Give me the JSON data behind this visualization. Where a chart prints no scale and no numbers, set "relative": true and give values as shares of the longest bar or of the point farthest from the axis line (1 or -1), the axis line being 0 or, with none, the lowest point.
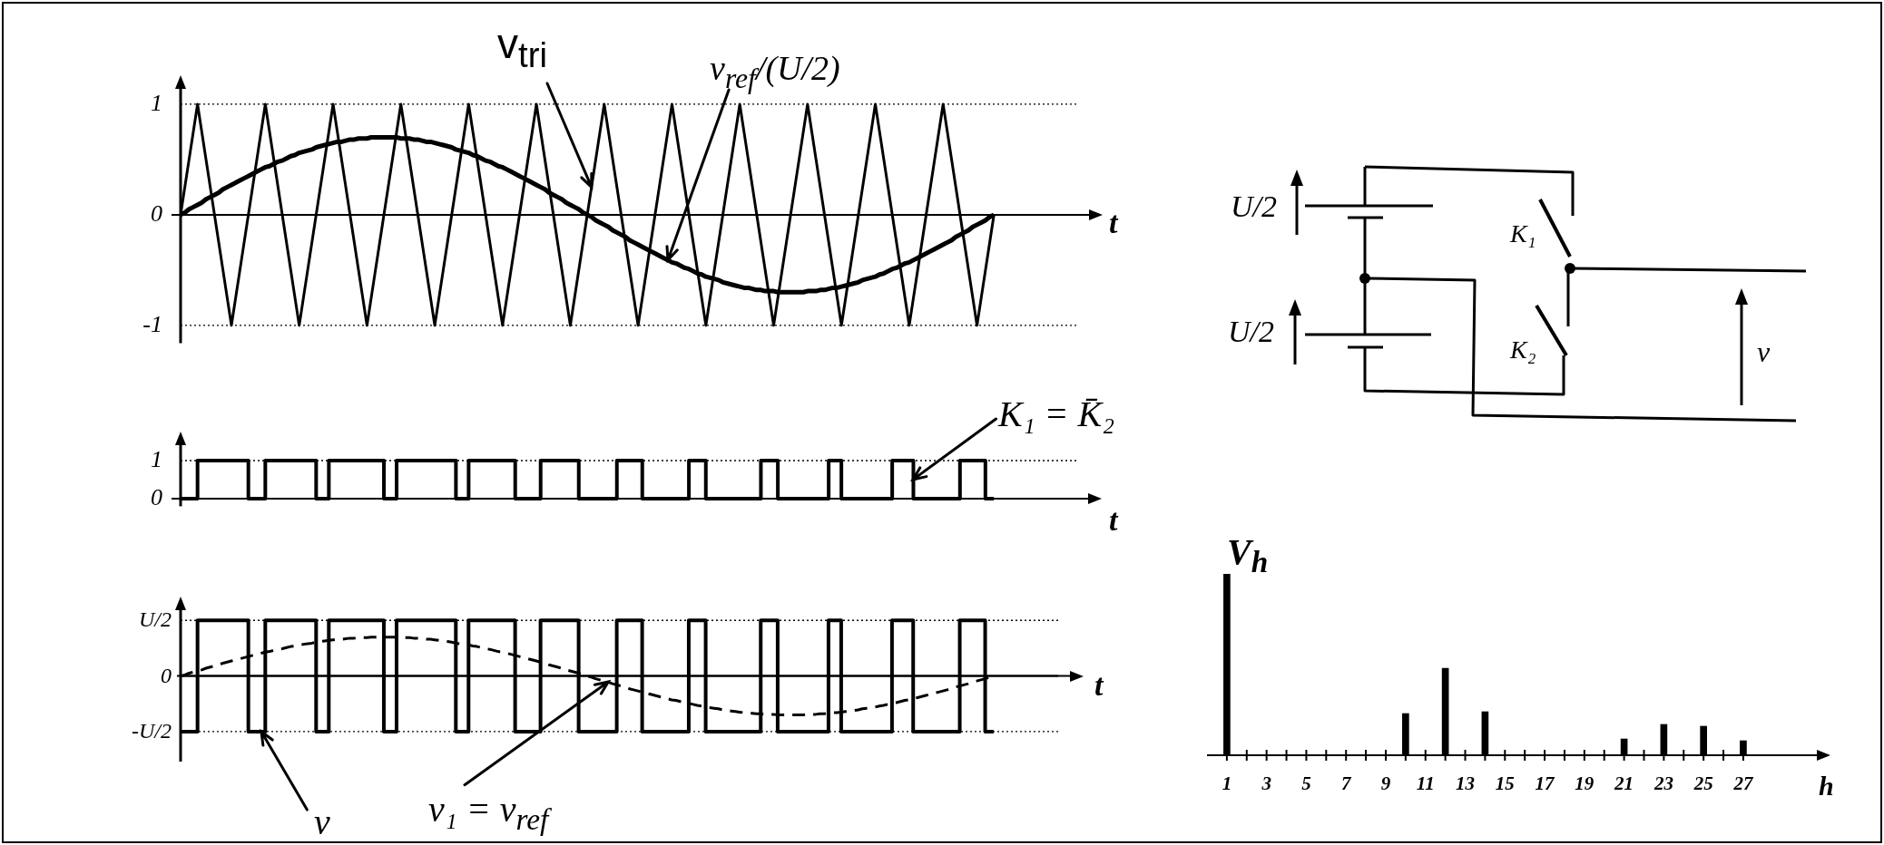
{
  "chart_data": [
    {
      "type": "line",
      "xlabel": "t",
      "ylim": [
        -1.16,
        1.15
      ],
      "yticks": [
        -1,
        0,
        1
      ],
      "grid": "y",
      "annotations": [
        "v$_{tri}$",
        "v$_{ref}$/(U/2)"
      ],
      "categories": [
        null,
        null,
        null,
        null,
        null,
        null,
        null,
        null,
        null,
        null,
        null,
        null,
        null,
        null,
        null,
        null,
        null,
        null,
        null,
        null,
        null,
        null,
        null,
        null,
        null,
        null,
        null,
        null,
        null,
        null,
        null,
        null,
        null,
        null,
        null,
        null,
        null,
        null,
        null,
        null,
        null,
        null,
        null,
        null,
        null,
        null,
        null,
        null,
        null,
        null,
        null,
        null,
        null,
        null,
        null,
        null,
        null,
        null,
        null,
        null,
        null,
        null,
        null,
        null,
        null,
        null,
        null,
        null,
        null,
        null,
        null,
        null,
        null,
        null,
        null,
        null,
        null,
        null,
        null,
        null,
        null,
        null,
        null,
        null,
        null,
        null,
        null,
        null,
        null,
        null,
        null,
        null,
        null,
        null,
        null,
        null,
        null,
        null,
        null,
        null,
        null,
        null,
        null,
        null,
        null,
        null,
        null,
        null,
        null,
        null,
        null,
        null,
        null,
        null,
        null,
        null,
        null,
        null,
        null,
        null,
        null,
        null,
        null,
        null,
        null,
        null,
        null,
        null,
        null,
        null,
        null,
        null,
        null,
        null,
        null,
        null,
        null,
        null,
        null,
        null,
        null,
        null,
        null,
        null,
        null,
        null,
        null,
        null,
        null,
        null,
        null,
        null,
        null,
        null,
        null,
        null,
        null,
        null,
        null,
        null,
        null,
        null,
        null,
        null,
        null,
        null,
        null,
        null,
        null,
        null,
        null,
        null,
        null,
        null,
        null,
        null,
        null,
        null,
        null,
        null,
        null,
        null,
        null,
        null,
        null,
        null,
        null,
        null,
        null,
        null,
        null,
        null,
        null
      ],
      "series": [
        {
          "color": "#000000",
          "values": [
            0,
            0.25,
            0.5,
            0.75,
            1,
            0.75,
            0.5,
            0.25,
            0,
            -0.25,
            -0.5,
            -0.75,
            -1,
            -0.75,
            -0.5,
            -0.25,
            0,
            0.25,
            0.5,
            0.75,
            1,
            0.75,
            0.5,
            0.25,
            0,
            -0.25,
            -0.5,
            -0.75,
            -1,
            -0.75,
            -0.5,
            -0.25,
            0,
            0.25,
            0.5,
            0.75,
            1,
            0.75,
            0.5,
            0.25,
            0,
            -0.25,
            -0.5,
            -0.75,
            -1,
            -0.75,
            -0.5,
            -0.25,
            0,
            0.25,
            0.5,
            0.75,
            1,
            0.75,
            0.5,
            0.25,
            0,
            -0.25,
            -0.5,
            -0.75,
            -1,
            -0.75,
            -0.5,
            -0.25,
            0,
            0.25,
            0.5,
            0.75,
            1,
            0.75,
            0.5,
            0.25,
            0,
            -0.25,
            -0.5,
            -0.75,
            -1,
            -0.75,
            -0.5,
            -0.25,
            0,
            0.25,
            0.5,
            0.75,
            1,
            0.75,
            0.5,
            0.25,
            0,
            -0.25,
            -0.5,
            -0.75,
            -1,
            -0.75,
            -0.5,
            -0.25,
            0,
            0.25,
            0.5,
            0.75,
            1,
            0.75,
            0.5,
            0.25,
            0,
            -0.25,
            -0.5,
            -0.75,
            -1,
            -0.75,
            -0.5,
            -0.25,
            0,
            0.25,
            0.5,
            0.75,
            1,
            0.75,
            0.5,
            0.25,
            0,
            -0.25,
            -0.5,
            -0.75,
            -1,
            -0.75,
            -0.5,
            -0.25,
            0,
            0.25,
            0.5,
            0.75,
            1,
            0.75,
            0.5,
            0.25,
            0,
            -0.25,
            -0.5,
            -0.75,
            -1,
            -0.75,
            -0.5,
            -0.25,
            0,
            0.25,
            0.5,
            0.75,
            1,
            0.75,
            0.5,
            0.25,
            0,
            -0.25,
            -0.5,
            -0.75,
            -1,
            -0.75,
            -0.5,
            -0.25,
            0,
            0.25,
            0.5,
            0.75,
            1,
            0.75,
            0.5,
            0.25,
            0,
            -0.25,
            -0.5,
            -0.75,
            -1,
            -0.75,
            -0.5,
            -0.25,
            0,
            0.25,
            0.5,
            0.75,
            1,
            0.75,
            0.5,
            0.25,
            0,
            -0.25,
            -0.5,
            -0.75,
            -1,
            -0.75,
            -0.5,
            -0.25,
            0
          ]
        },
        {
          "color": "#000000",
          "values": [
            0,
            0.02,
            0.05,
            0.07,
            0.09,
            0.11,
            0.14,
            0.16,
            0.18,
            0.2,
            0.23,
            0.25,
            0.27,
            0.29,
            0.31,
            0.33,
            0.35,
            0.37,
            0.39,
            0.41,
            0.43,
            0.44,
            0.46,
            0.48,
            0.49,
            0.51,
            0.53,
            0.54,
            0.56,
            0.57,
            0.58,
            0.59,
            0.61,
            0.62,
            0.63,
            0.64,
            0.65,
            0.66,
            0.66,
            0.67,
            0.68,
            0.68,
            0.69,
            0.69,
            0.69,
            0.7,
            0.7,
            0.7,
            0.7,
            0.7,
            0.7,
            0.7,
            0.69,
            0.69,
            0.69,
            0.68,
            0.68,
            0.67,
            0.66,
            0.66,
            0.65,
            0.64,
            0.63,
            0.62,
            0.61,
            0.59,
            0.58,
            0.57,
            0.56,
            0.54,
            0.53,
            0.51,
            0.49,
            0.48,
            0.46,
            0.44,
            0.43,
            0.41,
            0.39,
            0.37,
            0.35,
            0.33,
            0.31,
            0.29,
            0.27,
            0.25,
            0.23,
            0.2,
            0.18,
            0.16,
            0.14,
            0.11,
            0.09,
            0.07,
            0.05,
            0.02,
            0,
            -0.02,
            -0.05,
            -0.07,
            -0.09,
            -0.11,
            -0.14,
            -0.16,
            -0.18,
            -0.2,
            -0.23,
            -0.25,
            -0.27,
            -0.29,
            -0.31,
            -0.33,
            -0.35,
            -0.37,
            -0.39,
            -0.41,
            -0.43,
            -0.44,
            -0.46,
            -0.48,
            -0.49,
            -0.51,
            -0.53,
            -0.54,
            -0.56,
            -0.57,
            -0.58,
            -0.59,
            -0.61,
            -0.62,
            -0.63,
            -0.64,
            -0.65,
            -0.66,
            -0.66,
            -0.67,
            -0.68,
            -0.68,
            -0.69,
            -0.69,
            -0.69,
            -0.7,
            -0.7,
            -0.7,
            -0.7,
            -0.7,
            -0.7,
            -0.7,
            -0.69,
            -0.69,
            -0.69,
            -0.68,
            -0.68,
            -0.67,
            -0.66,
            -0.66,
            -0.65,
            -0.64,
            -0.63,
            -0.62,
            -0.61,
            -0.59,
            -0.58,
            -0.57,
            -0.56,
            -0.54,
            -0.53,
            -0.51,
            -0.49,
            -0.48,
            -0.46,
            -0.44,
            -0.43,
            -0.41,
            -0.39,
            -0.37,
            -0.35,
            -0.33,
            -0.31,
            -0.29,
            -0.27,
            -0.25,
            -0.23,
            -0.2,
            -0.18,
            -0.16,
            -0.14,
            -0.11,
            -0.09,
            -0.07,
            -0.05,
            -0.02,
            0
          ]
        }
      ]
    },
    {
      "type": "step",
      "xlabel": "t",
      "ylim": [
        -0.2,
        1.44
      ],
      "yticks": [
        0,
        1
      ],
      "annotations": [
        "K₁ = K̄₂"
      ],
      "ref_lines": [
        {
          "axis": "y",
          "value": 1,
          "line_style": "dotted"
        }
      ],
      "categories": [
        null,
        null,
        null,
        null,
        null,
        null,
        null,
        null,
        null,
        null,
        null,
        null,
        null,
        null,
        null,
        null,
        null,
        null,
        null,
        null,
        null,
        null,
        null,
        null,
        null,
        null,
        null,
        null,
        null,
        null,
        null,
        null,
        null,
        null,
        null,
        null,
        null,
        null,
        null,
        null,
        null,
        null,
        null,
        null,
        null,
        null,
        null,
        null,
        null,
        null,
        null,
        null,
        null,
        null,
        null,
        null,
        null,
        null,
        null,
        null,
        null,
        null,
        null,
        null,
        null,
        null,
        null,
        null,
        null,
        null,
        null,
        null,
        null,
        null,
        null,
        null,
        null,
        null,
        null,
        null,
        null,
        null,
        null,
        null,
        null,
        null,
        null,
        null,
        null,
        null,
        null,
        null,
        null,
        null,
        null,
        null,
        null,
        null,
        null,
        null,
        null,
        null,
        null,
        null,
        null,
        null,
        null,
        null,
        null,
        null,
        null,
        null,
        null,
        null,
        null,
        null,
        null,
        null,
        null,
        null,
        null,
        null,
        null,
        null,
        null,
        null,
        null,
        null,
        null,
        null,
        null,
        null,
        null,
        null,
        null,
        null,
        null,
        null,
        null,
        null,
        null,
        null,
        null,
        null,
        null,
        null,
        null,
        null,
        null,
        null,
        null,
        null,
        null,
        null,
        null,
        null,
        null,
        null,
        null,
        null,
        null,
        null,
        null,
        null,
        null,
        null,
        null,
        null,
        null,
        null,
        null,
        null,
        null,
        null,
        null,
        null,
        null,
        null,
        null,
        null,
        null,
        null,
        null,
        null,
        null,
        null,
        null,
        null,
        null,
        null,
        null,
        null,
        null
      ],
      "series": [
        {
          "color": "#000000",
          "values": [
            0,
            0,
            0,
            0,
            1,
            1,
            1,
            1,
            1,
            1,
            1,
            1,
            1,
            1,
            1,
            1,
            0,
            0,
            0,
            0,
            1,
            1,
            1,
            1,
            1,
            1,
            1,
            1,
            1,
            1,
            1,
            1,
            0,
            0,
            0,
            1,
            1,
            1,
            1,
            1,
            1,
            1,
            1,
            1,
            1,
            1,
            1,
            1,
            0,
            0,
            0,
            1,
            1,
            1,
            1,
            1,
            1,
            1,
            1,
            1,
            1,
            1,
            1,
            1,
            1,
            0,
            0,
            0,
            1,
            1,
            1,
            1,
            1,
            1,
            1,
            1,
            1,
            1,
            1,
            0,
            0,
            0,
            0,
            0,
            0,
            1,
            1,
            1,
            1,
            1,
            1,
            1,
            1,
            1,
            0,
            0,
            0,
            0,
            0,
            0,
            0,
            0,
            0,
            1,
            1,
            1,
            1,
            1,
            1,
            0,
            0,
            0,
            0,
            0,
            0,
            0,
            0,
            0,
            0,
            0,
            1,
            1,
            1,
            1,
            0,
            0,
            0,
            0,
            0,
            0,
            0,
            0,
            0,
            0,
            0,
            0,
            0,
            1,
            1,
            1,
            1,
            0,
            0,
            0,
            0,
            0,
            0,
            0,
            0,
            0,
            0,
            0,
            0,
            1,
            1,
            1,
            0,
            0,
            0,
            0,
            0,
            0,
            0,
            0,
            0,
            0,
            0,
            0,
            1,
            1,
            1,
            1,
            1,
            0,
            0,
            0,
            0,
            0,
            0,
            0,
            0,
            0,
            0,
            0,
            1,
            1,
            1,
            1,
            1,
            1,
            0,
            0,
            0
          ]
        }
      ]
    },
    {
      "type": "step",
      "xlabel": "t",
      "relative": true,
      "annotations": [
        "v",
        "v₁ = v$_{ref}$"
      ],
      "ref_lines": [
        {
          "axis": "y",
          "value": 1,
          "label": "U/2",
          "line_style": "dotted"
        },
        {
          "axis": "y",
          "value": 0,
          "label": "0"
        },
        {
          "axis": "y",
          "value": -1,
          "label": "-U/2",
          "line_style": "dotted"
        }
      ],
      "categories": [
        null,
        null,
        null,
        null,
        null,
        null,
        null,
        null,
        null,
        null,
        null,
        null,
        null,
        null,
        null,
        null,
        null,
        null,
        null,
        null,
        null,
        null,
        null,
        null,
        null,
        null,
        null,
        null,
        null,
        null,
        null,
        null,
        null,
        null,
        null,
        null,
        null,
        null,
        null,
        null,
        null,
        null,
        null,
        null,
        null,
        null,
        null,
        null,
        null,
        null,
        null,
        null,
        null,
        null,
        null,
        null,
        null,
        null,
        null,
        null,
        null,
        null,
        null,
        null,
        null,
        null,
        null,
        null,
        null,
        null,
        null,
        null,
        null,
        null,
        null,
        null,
        null,
        null,
        null,
        null,
        null,
        null,
        null,
        null,
        null,
        null,
        null,
        null,
        null,
        null,
        null,
        null,
        null,
        null,
        null,
        null,
        null,
        null,
        null,
        null,
        null,
        null,
        null,
        null,
        null,
        null,
        null,
        null,
        null,
        null,
        null,
        null,
        null,
        null,
        null,
        null,
        null,
        null,
        null,
        null,
        null,
        null,
        null,
        null,
        null,
        null,
        null,
        null,
        null,
        null,
        null,
        null,
        null,
        null,
        null,
        null,
        null,
        null,
        null,
        null,
        null,
        null,
        null,
        null,
        null,
        null,
        null,
        null,
        null,
        null,
        null,
        null,
        null,
        null,
        null,
        null,
        null,
        null,
        null,
        null,
        null,
        null,
        null,
        null,
        null,
        null,
        null,
        null,
        null,
        null,
        null,
        null,
        null,
        null,
        null,
        null,
        null,
        null,
        null,
        null,
        null,
        null,
        null,
        null,
        null,
        null,
        null,
        null,
        null,
        null,
        null,
        null,
        null
      ],
      "series": [
        {
          "color": "#000000",
          "values": [
            -1,
            -1,
            -1,
            -1,
            1,
            1,
            1,
            1,
            1,
            1,
            1,
            1,
            1,
            1,
            1,
            1,
            -1,
            -1,
            -1,
            -1,
            1,
            1,
            1,
            1,
            1,
            1,
            1,
            1,
            1,
            1,
            1,
            1,
            -1,
            -1,
            -1,
            1,
            1,
            1,
            1,
            1,
            1,
            1,
            1,
            1,
            1,
            1,
            1,
            1,
            -1,
            -1,
            -1,
            1,
            1,
            1,
            1,
            1,
            1,
            1,
            1,
            1,
            1,
            1,
            1,
            1,
            1,
            -1,
            -1,
            -1,
            1,
            1,
            1,
            1,
            1,
            1,
            1,
            1,
            1,
            1,
            1,
            -1,
            -1,
            -1,
            -1,
            -1,
            -1,
            1,
            1,
            1,
            1,
            1,
            1,
            1,
            1,
            1,
            -1,
            -1,
            -1,
            -1,
            -1,
            -1,
            -1,
            -1,
            -1,
            1,
            1,
            1,
            1,
            1,
            1,
            -1,
            -1,
            -1,
            -1,
            -1,
            -1,
            -1,
            -1,
            -1,
            -1,
            -1,
            1,
            1,
            1,
            1,
            -1,
            -1,
            -1,
            -1,
            -1,
            -1,
            -1,
            -1,
            -1,
            -1,
            -1,
            -1,
            -1,
            1,
            1,
            1,
            1,
            -1,
            -1,
            -1,
            -1,
            -1,
            -1,
            -1,
            -1,
            -1,
            -1,
            -1,
            -1,
            1,
            1,
            1,
            -1,
            -1,
            -1,
            -1,
            -1,
            -1,
            -1,
            -1,
            -1,
            -1,
            -1,
            -1,
            1,
            1,
            1,
            1,
            1,
            -1,
            -1,
            -1,
            -1,
            -1,
            -1,
            -1,
            -1,
            -1,
            -1,
            -1,
            1,
            1,
            1,
            1,
            1,
            1,
            -1,
            -1,
            -1
          ]
        },
        {
          "type": "line",
          "line_style": "dashed",
          "color": "#000000",
          "values": [
            0,
            0.02,
            0.05,
            0.07,
            0.09,
            0.11,
            0.14,
            0.16,
            0.18,
            0.2,
            0.23,
            0.25,
            0.27,
            0.29,
            0.31,
            0.33,
            0.35,
            0.37,
            0.39,
            0.41,
            0.43,
            0.44,
            0.46,
            0.48,
            0.49,
            0.51,
            0.53,
            0.54,
            0.56,
            0.57,
            0.58,
            0.59,
            0.61,
            0.62,
            0.63,
            0.64,
            0.65,
            0.66,
            0.66,
            0.67,
            0.68,
            0.68,
            0.69,
            0.69,
            0.69,
            0.7,
            0.7,
            0.7,
            0.7,
            0.7,
            0.7,
            0.7,
            0.69,
            0.69,
            0.69,
            0.68,
            0.68,
            0.67,
            0.66,
            0.66,
            0.65,
            0.64,
            0.63,
            0.62,
            0.61,
            0.59,
            0.58,
            0.57,
            0.56,
            0.54,
            0.53,
            0.51,
            0.49,
            0.48,
            0.46,
            0.44,
            0.43,
            0.41,
            0.39,
            0.37,
            0.35,
            0.33,
            0.31,
            0.29,
            0.27,
            0.25,
            0.23,
            0.2,
            0.18,
            0.16,
            0.14,
            0.11,
            0.09,
            0.07,
            0.05,
            0.02,
            0,
            -0.02,
            -0.05,
            -0.07,
            -0.09,
            -0.11,
            -0.14,
            -0.16,
            -0.18,
            -0.2,
            -0.23,
            -0.25,
            -0.27,
            -0.29,
            -0.31,
            -0.33,
            -0.35,
            -0.37,
            -0.39,
            -0.41,
            -0.43,
            -0.44,
            -0.46,
            -0.48,
            -0.49,
            -0.51,
            -0.53,
            -0.54,
            -0.56,
            -0.57,
            -0.58,
            -0.59,
            -0.61,
            -0.62,
            -0.63,
            -0.64,
            -0.65,
            -0.66,
            -0.66,
            -0.67,
            -0.68,
            -0.68,
            -0.69,
            -0.69,
            -0.69,
            -0.7,
            -0.7,
            -0.7,
            -0.7,
            -0.7,
            -0.7,
            -0.7,
            -0.69,
            -0.69,
            -0.69,
            -0.68,
            -0.68,
            -0.67,
            -0.66,
            -0.66,
            -0.65,
            -0.64,
            -0.63,
            -0.62,
            -0.61,
            -0.59,
            -0.58,
            -0.57,
            -0.56,
            -0.54,
            -0.53,
            -0.51,
            -0.49,
            -0.48,
            -0.46,
            -0.44,
            -0.43,
            -0.41,
            -0.39,
            -0.37,
            -0.35,
            -0.33,
            -0.31,
            -0.29,
            -0.27,
            -0.25,
            -0.23,
            -0.2,
            -0.18,
            -0.16,
            -0.14,
            -0.11,
            -0.09,
            -0.07,
            -0.05,
            -0.02,
            0
          ]
        }
      ]
    },
    {
      "type": "other",
      "annotations": [
        "U/2",
        "U/2",
        "K₁",
        "K₂",
        "v"
      ]
    },
    {
      "type": "bar",
      "x": [
        1,
        10,
        12,
        14,
        21,
        23,
        25,
        27
      ],
      "values": [
        1,
        0.23,
        0.48,
        0.24,
        0.09,
        0.17,
        0.16,
        0.08
      ],
      "color": "#000000",
      "relative": true,
      "xlim": [
        0,
        30.75
      ],
      "xticks": [
        1,
        {
          "value": 2,
          "label": null
        },
        3,
        {
          "value": 4,
          "label": null
        },
        5,
        {
          "value": 6,
          "label": null
        },
        7,
        {
          "value": 8,
          "label": null
        },
        9,
        {
          "value": 10,
          "label": null
        },
        11,
        {
          "value": 12,
          "label": null
        },
        13,
        {
          "value": 14,
          "label": null
        },
        15,
        {
          "value": 16,
          "label": null
        },
        17,
        {
          "value": 18,
          "label": null
        },
        19,
        {
          "value": 20,
          "label": null
        },
        21,
        {
          "value": 22,
          "label": null
        },
        23,
        {
          "value": 24,
          "label": null
        },
        25,
        {
          "value": 26,
          "label": null
        },
        27
      ],
      "xlabel": "h",
      "ylabel": "V$_{h}$"
    }
  ]
}
